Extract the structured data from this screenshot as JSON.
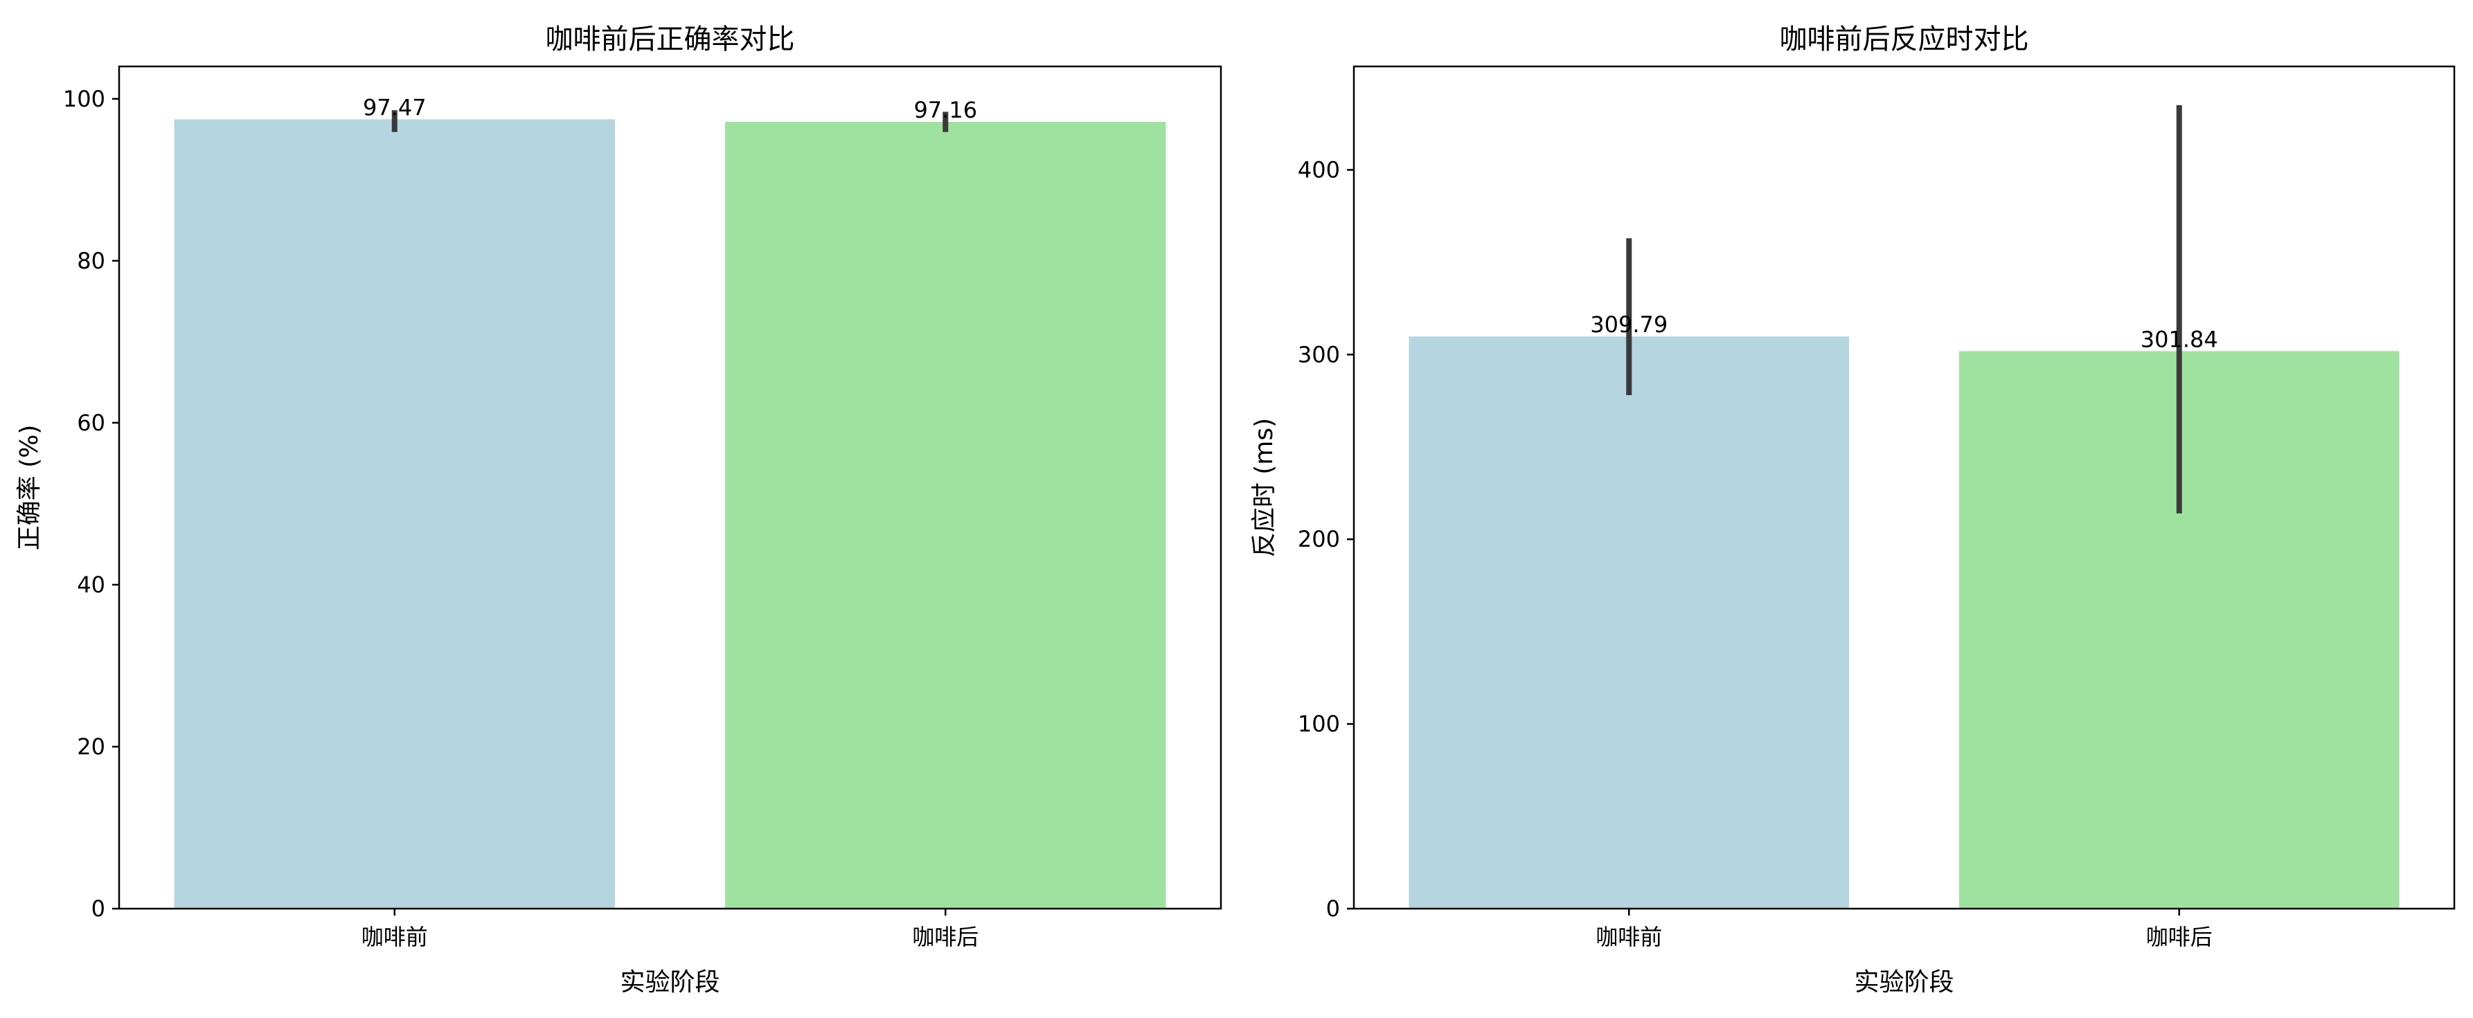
{
  "chart_data": [
    {
      "type": "bar",
      "title": "咖啡前后正确率对比",
      "xlabel": "实验阶段",
      "ylabel": "正确率 (%)",
      "categories": [
        "咖啡前",
        "咖啡后"
      ],
      "values": [
        97.47,
        97.16
      ],
      "value_labels": [
        "97.47",
        "97.16"
      ],
      "error_low": [
        95.9,
        95.9
      ],
      "error_high": [
        98.6,
        98.4
      ],
      "colors": [
        "#b5d5e0",
        "#9fe29f"
      ],
      "ylim": [
        0,
        104
      ],
      "yticks": [
        0,
        20,
        40,
        60,
        80,
        100
      ],
      "ytick_labels": [
        "0",
        "20",
        "40",
        "60",
        "80",
        "100"
      ],
      "grid": false,
      "legend": "none"
    },
    {
      "type": "bar",
      "title": "咖啡前后反应时对比",
      "xlabel": "实验阶段",
      "ylabel": "反应时 (ms)",
      "categories": [
        "咖啡前",
        "咖啡后"
      ],
      "values": [
        309.79,
        301.84
      ],
      "value_labels": [
        "309.79",
        "301.84"
      ],
      "error_low": [
        278,
        214
      ],
      "error_high": [
        363,
        435
      ],
      "colors": [
        "#b5d5e0",
        "#9fe29f"
      ],
      "ylim": [
        0,
        456
      ],
      "yticks": [
        0,
        100,
        200,
        300,
        400
      ],
      "ytick_labels": [
        "0",
        "100",
        "200",
        "300",
        "400"
      ],
      "grid": false,
      "legend": "none"
    }
  ]
}
